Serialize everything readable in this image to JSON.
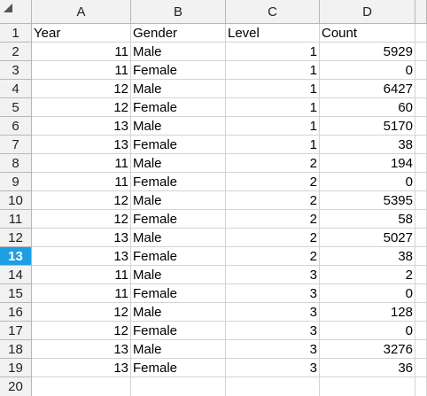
{
  "columns": [
    "A",
    "B",
    "C",
    "D"
  ],
  "header_row": {
    "row_number": "1",
    "cells": [
      "Year",
      "Gender",
      "Level",
      "Count"
    ]
  },
  "rows": [
    {
      "n": "2",
      "year": "11",
      "gender": "Male",
      "level": "1",
      "count": "5929"
    },
    {
      "n": "3",
      "year": "11",
      "gender": "Female",
      "level": "1",
      "count": "0"
    },
    {
      "n": "4",
      "year": "12",
      "gender": "Male",
      "level": "1",
      "count": "6427"
    },
    {
      "n": "5",
      "year": "12",
      "gender": "Female",
      "level": "1",
      "count": "60"
    },
    {
      "n": "6",
      "year": "13",
      "gender": "Male",
      "level": "1",
      "count": "5170"
    },
    {
      "n": "7",
      "year": "13",
      "gender": "Female",
      "level": "1",
      "count": "38"
    },
    {
      "n": "8",
      "year": "11",
      "gender": "Male",
      "level": "2",
      "count": "194"
    },
    {
      "n": "9",
      "year": "11",
      "gender": "Female",
      "level": "2",
      "count": "0"
    },
    {
      "n": "10",
      "year": "12",
      "gender": "Male",
      "level": "2",
      "count": "5395"
    },
    {
      "n": "11",
      "year": "12",
      "gender": "Female",
      "level": "2",
      "count": "58"
    },
    {
      "n": "12",
      "year": "13",
      "gender": "Male",
      "level": "2",
      "count": "5027"
    },
    {
      "n": "13",
      "year": "13",
      "gender": "Female",
      "level": "2",
      "count": "38"
    },
    {
      "n": "14",
      "year": "11",
      "gender": "Male",
      "level": "3",
      "count": "2"
    },
    {
      "n": "15",
      "year": "11",
      "gender": "Female",
      "level": "3",
      "count": "0"
    },
    {
      "n": "16",
      "year": "12",
      "gender": "Male",
      "level": "3",
      "count": "128"
    },
    {
      "n": "17",
      "year": "12",
      "gender": "Female",
      "level": "3",
      "count": "0"
    },
    {
      "n": "18",
      "year": "13",
      "gender": "Male",
      "level": "3",
      "count": "3276"
    },
    {
      "n": "19",
      "year": "13",
      "gender": "Female",
      "level": "3",
      "count": "36"
    }
  ],
  "partial_row": {
    "n": "20"
  },
  "active_row": "13",
  "colors": {
    "active_row_header": "#1e9fe3",
    "header_bg": "#f2f2f2"
  },
  "icons": {
    "corner": "select-all-triangle-icon"
  }
}
